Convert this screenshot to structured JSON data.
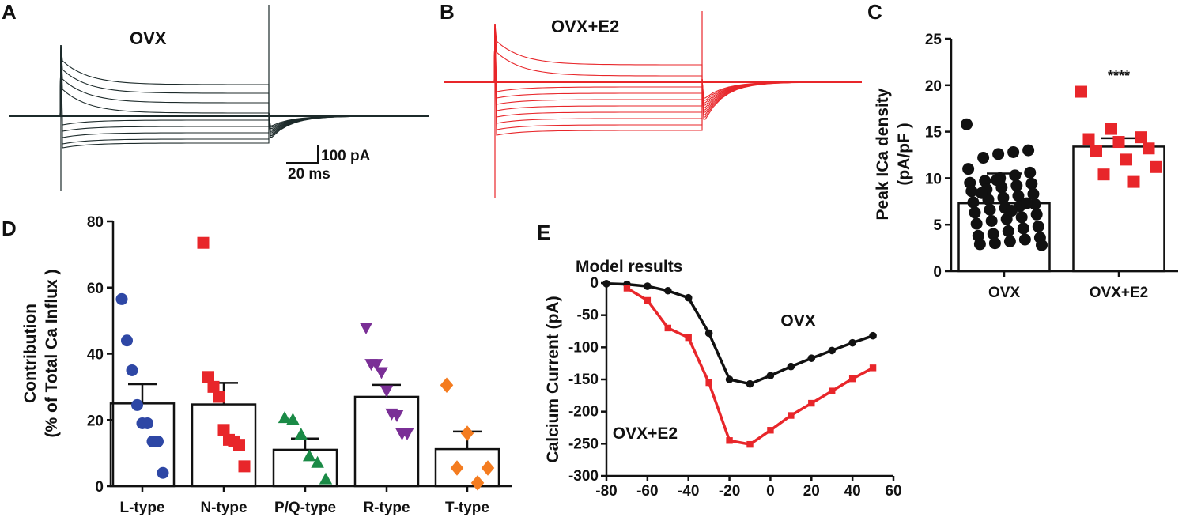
{
  "panels": {
    "A": {
      "letter": "A",
      "title": "OVX",
      "color": "#1c2a2a"
    },
    "B": {
      "letter": "B",
      "title": "OVX+E2",
      "color": "#e8262a"
    },
    "scale_bar": {
      "current": "100 pA",
      "time": "20 ms"
    }
  },
  "chart_data": [
    {
      "panel": "C",
      "letter": "C",
      "type": "bar",
      "categories": [
        "OVX",
        "OVX+E2"
      ],
      "values": [
        7.3,
        13.4
      ],
      "errors": [
        3.2,
        0.9
      ],
      "title": "",
      "xlabel": "",
      "ylabel": "Peak ICa density",
      "ylabel2": "(pA/pF  )",
      "ylim": [
        0,
        25
      ],
      "yticks": [
        0,
        5,
        10,
        15,
        20,
        25
      ],
      "significance": "****",
      "colors": [
        "#111111",
        "#e8262a"
      ],
      "points": [
        [
          15.8,
          13.0,
          12.8,
          12.6,
          12.2,
          11.0,
          10.6,
          10.3,
          10.0,
          9.7,
          9.5,
          9.4,
          9.2,
          9.0,
          8.8,
          8.6,
          8.3,
          8.1,
          7.9,
          7.7,
          7.4,
          7.2,
          7.0,
          6.8,
          6.6,
          6.3,
          6.1,
          5.8,
          5.6,
          5.4,
          5.1,
          4.8,
          4.6,
          4.3,
          4.0,
          3.8,
          3.6,
          3.4,
          3.2,
          3.0,
          2.9,
          2.8,
          7.3,
          6.5,
          9.8,
          8.4
        ],
        [
          19.3,
          15.3,
          14.4,
          14.2,
          13.9,
          13.2,
          12.9,
          12.0,
          11.2,
          10.4,
          9.6
        ]
      ]
    },
    {
      "panel": "D",
      "letter": "D",
      "type": "bar",
      "categories": [
        "L-type",
        "N-type",
        "P/Q-type",
        "R-type",
        "T-type"
      ],
      "values": [
        25,
        24.7,
        11,
        27,
        11.2
      ],
      "errors": [
        5.8,
        6.5,
        3.4,
        3.6,
        5.3
      ],
      "title": "",
      "xlabel": "",
      "ylabel": "Contribution",
      "ylabel2": "(% of Total Ca Influx )",
      "ylim": [
        0,
        80
      ],
      "yticks": [
        0,
        20,
        40,
        60,
        80
      ],
      "colors": [
        "#2e47a5",
        "#e8262a",
        "#1a8a46",
        "#7a2f96",
        "#f47c20"
      ],
      "markers": [
        "circle",
        "square",
        "triangle-up",
        "triangle-down",
        "diamond"
      ],
      "points": [
        [
          56.5,
          44,
          35,
          24.5,
          19,
          19,
          13.5,
          13.5,
          4
        ],
        [
          73.5,
          33,
          30,
          27,
          17,
          14,
          13.5,
          12.5,
          6
        ],
        [
          20.5,
          20,
          15.5,
          9,
          7,
          2
        ],
        [
          48,
          37,
          37,
          34.5,
          29,
          22,
          21.5,
          16,
          16
        ],
        [
          30.5,
          16,
          5.5,
          5.5,
          1
        ]
      ]
    },
    {
      "panel": "E",
      "letter": "E",
      "type": "line",
      "title": "Model results",
      "xlabel": "",
      "ylabel": "Calcium Current (pA)",
      "xlim": [
        -80,
        60
      ],
      "ylim": [
        -300,
        0
      ],
      "xticks": [
        -80,
        -60,
        -40,
        -20,
        0,
        20,
        40,
        60
      ],
      "yticks": [
        0,
        -50,
        -100,
        -150,
        -200,
        -250,
        -300
      ],
      "series": [
        {
          "name": "OVX",
          "color": "#111111",
          "marker": "circle",
          "x": [
            -80,
            -70,
            -60,
            -50,
            -40,
            -30,
            -20,
            -10,
            0,
            10,
            20,
            30,
            40,
            50
          ],
          "y": [
            -1,
            -2,
            -5,
            -12,
            -23,
            -78,
            -150,
            -157,
            -144,
            -130,
            -117,
            -105,
            -93,
            -82
          ]
        },
        {
          "name": "OVX+E2",
          "color": "#e8262a",
          "marker": "square",
          "x": [
            -70,
            -60,
            -50,
            -40,
            -30,
            -20,
            -10,
            0,
            10,
            20,
            30,
            40,
            50
          ],
          "y": [
            -8,
            -27,
            -70,
            -85,
            -155,
            -245,
            -251,
            -229,
            -206,
            -187,
            -168,
            -149,
            -132
          ]
        }
      ]
    }
  ]
}
